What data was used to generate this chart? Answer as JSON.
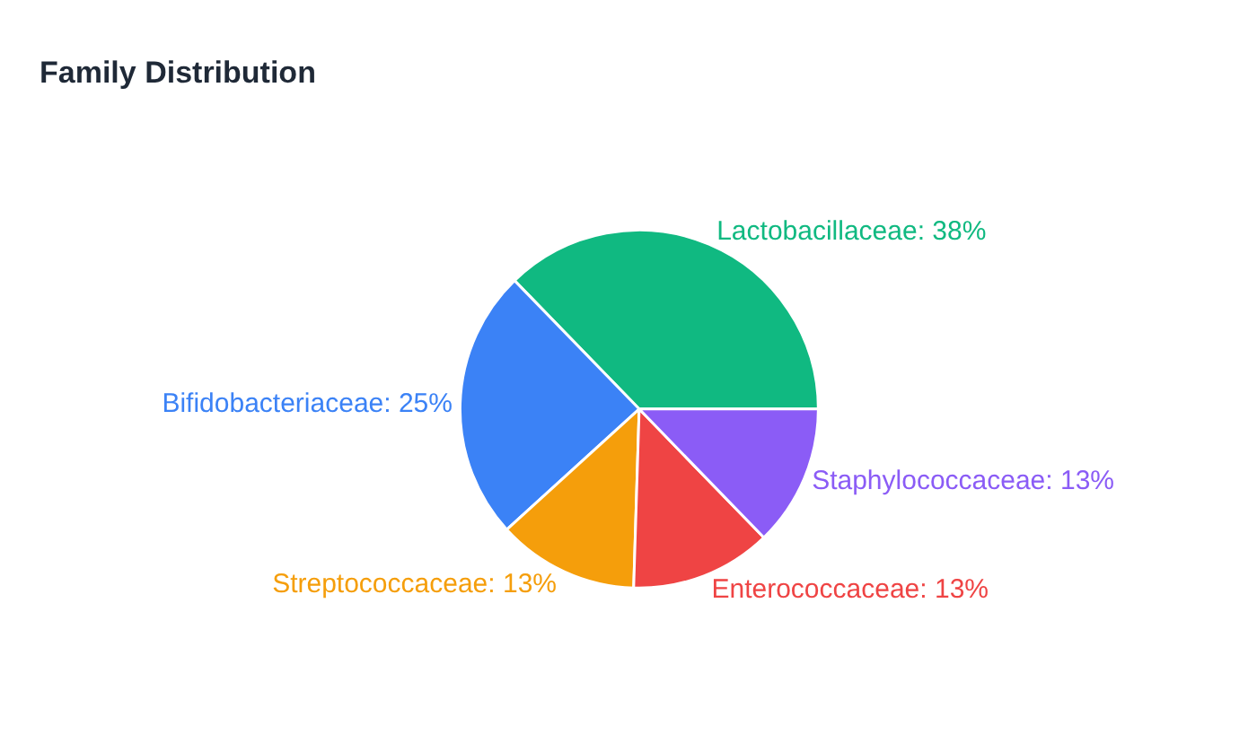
{
  "chart_data": {
    "type": "pie",
    "title": "Family Distribution",
    "categories": [
      "Lactobacillaceae",
      "Bifidobacteriaceae",
      "Streptococcaceae",
      "Enterococcaceae",
      "Staphylococcaceae"
    ],
    "values": [
      38,
      25,
      13,
      13,
      13
    ],
    "value_labels": [
      "38%",
      "25%",
      "13%",
      "13%",
      "13%"
    ],
    "colors": [
      "#10b981",
      "#3b82f6",
      "#f59e0b",
      "#ef4444",
      "#8b5cf6"
    ],
    "legend": false
  }
}
